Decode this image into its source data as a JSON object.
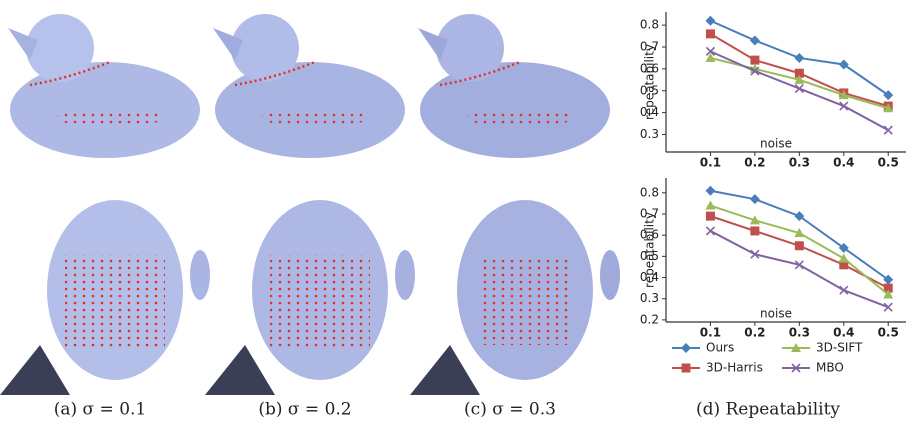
{
  "captions": [
    "(a) σ = 0.1",
    "(b) σ = 0.2",
    "(c) σ = 0.3",
    "(d) Repeatability"
  ],
  "chart_data": [
    {
      "type": "line",
      "x_label": "noise",
      "y_label": "repeatability",
      "x": [
        0.1,
        0.2,
        0.3,
        0.4,
        0.5
      ],
      "xlim": [
        0.0,
        0.54
      ],
      "xticks": [
        0.1,
        0.2,
        0.3,
        0.4,
        0.5
      ],
      "ylim": [
        0.22,
        0.86
      ],
      "yticks": [
        0.3,
        0.4,
        0.5,
        0.6,
        0.7,
        0.8
      ],
      "series": [
        {
          "color": "#4a7ebb",
          "marker": "diamond",
          "values": [
            0.82,
            0.73,
            0.65,
            0.62,
            0.48
          ]
        },
        {
          "color": "#c0504d",
          "marker": "square",
          "values": [
            0.76,
            0.64,
            0.58,
            0.49,
            0.43
          ]
        },
        {
          "color": "#9bbb59",
          "marker": "triangle",
          "values": [
            0.65,
            0.6,
            0.55,
            0.48,
            0.42
          ]
        },
        {
          "color": "#8064a2",
          "marker": "x",
          "values": [
            0.68,
            0.59,
            0.51,
            0.43,
            0.32
          ]
        }
      ]
    },
    {
      "type": "line",
      "x_label": "noise",
      "y_label": "repeatability",
      "x": [
        0.1,
        0.2,
        0.3,
        0.4,
        0.5
      ],
      "xlim": [
        0.0,
        0.54
      ],
      "xticks": [
        0.1,
        0.2,
        0.3,
        0.4,
        0.5
      ],
      "ylim": [
        0.19,
        0.87
      ],
      "yticks": [
        0.2,
        0.3,
        0.4,
        0.5,
        0.6,
        0.7,
        0.8
      ],
      "legend": "bottom",
      "series": [
        {
          "name": "Ours",
          "color": "#4a7ebb",
          "marker": "diamond",
          "values": [
            0.81,
            0.77,
            0.69,
            0.54,
            0.39
          ]
        },
        {
          "name": "3D-Harris",
          "color": "#c0504d",
          "marker": "square",
          "values": [
            0.69,
            0.62,
            0.55,
            0.46,
            0.35
          ]
        },
        {
          "name": "3D-SIFT",
          "color": "#9bbb59",
          "marker": "triangle",
          "values": [
            0.74,
            0.67,
            0.61,
            0.49,
            0.32
          ]
        },
        {
          "name": "MBO",
          "color": "#8064a2",
          "marker": "x",
          "values": [
            0.62,
            0.51,
            0.46,
            0.34,
            0.26
          ]
        }
      ]
    }
  ]
}
